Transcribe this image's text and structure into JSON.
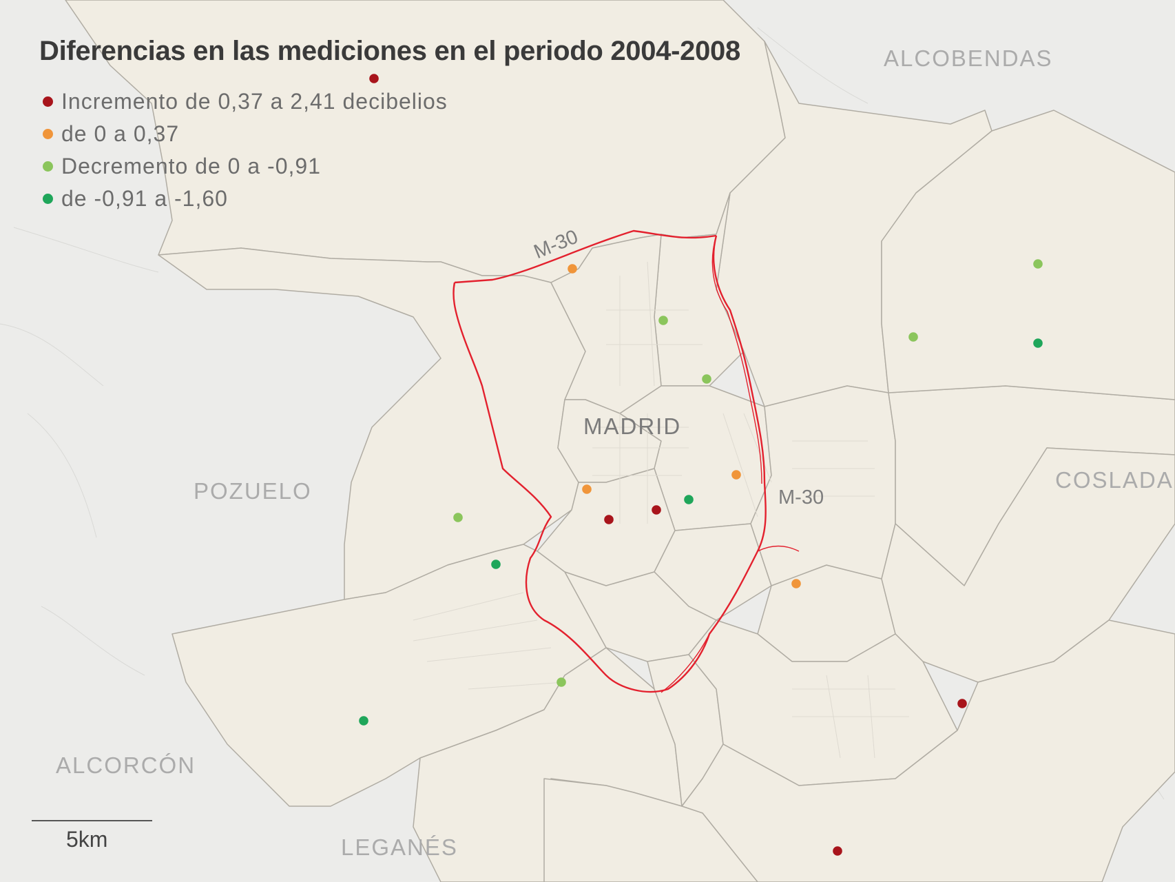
{
  "title": "Diferencias en las mediciones en el periodo 2004-2008",
  "colors": {
    "background": "#ececea",
    "district_fill": "#f1ede3",
    "district_border": "#b0aca3",
    "m30_route": "#e3212e",
    "increase": "#a8141b",
    "slight_increase": "#f0953a",
    "decrease": "#8bc55c",
    "strong_decrease": "#1fa65a"
  },
  "legend": [
    {
      "label": "Incremento de 0,37 a 2,41 decibelios",
      "category": "increase",
      "color": "#a8141b"
    },
    {
      "label": "de 0 a 0,37",
      "category": "slight_increase",
      "color": "#f0953a"
    },
    {
      "label": "Decremento de 0 a -0,91",
      "category": "decrease",
      "color": "#8bc55c"
    },
    {
      "label": "de -0,91 a -1,60",
      "category": "strong_decrease",
      "color": "#1fa65a"
    }
  ],
  "places": {
    "madrid": "MADRID",
    "alcobendas": "ALCOBENDAS",
    "pozuelo": "POZUELO",
    "coslada": "COSLADA",
    "alcorcon": "ALCORCÓN",
    "leganes": "LEGANÉS"
  },
  "roads": {
    "m30_north": "M-30",
    "m30_east": "M-30"
  },
  "scale_label": "5km",
  "measurement_points": [
    {
      "category": "increase"
    },
    {
      "category": "slight_increase"
    },
    {
      "category": "decrease"
    },
    {
      "category": "decrease"
    },
    {
      "category": "strong_decrease"
    },
    {
      "category": "decrease"
    },
    {
      "category": "decrease"
    },
    {
      "category": "slight_increase"
    },
    {
      "category": "strong_decrease"
    },
    {
      "category": "slight_increase"
    },
    {
      "category": "increase"
    },
    {
      "category": "increase"
    },
    {
      "category": "decrease"
    },
    {
      "category": "strong_decrease"
    },
    {
      "category": "slight_increase"
    },
    {
      "category": "decrease"
    },
    {
      "category": "strong_decrease"
    },
    {
      "category": "increase"
    },
    {
      "category": "increase"
    }
  ]
}
